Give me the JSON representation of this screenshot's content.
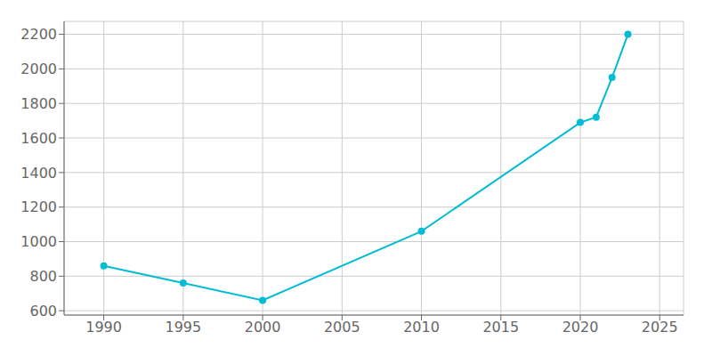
{
  "chart_data": {
    "type": "line",
    "x": [
      1990,
      1995,
      2000,
      2010,
      2020,
      2021,
      2022,
      2023
    ],
    "values": [
      860,
      760,
      660,
      1060,
      1690,
      1720,
      1950,
      2200
    ],
    "color": "#00bcd4",
    "marker": "circle",
    "xlim": [
      1987.5,
      2026.5
    ],
    "xticks": [
      1990,
      1995,
      2000,
      2005,
      2010,
      2015,
      2020,
      2025
    ],
    "ylim": [
      575,
      2275
    ],
    "yticks": [
      600,
      800,
      1000,
      1200,
      1400,
      1600,
      1800,
      2000,
      2200
    ],
    "grid": true
  }
}
